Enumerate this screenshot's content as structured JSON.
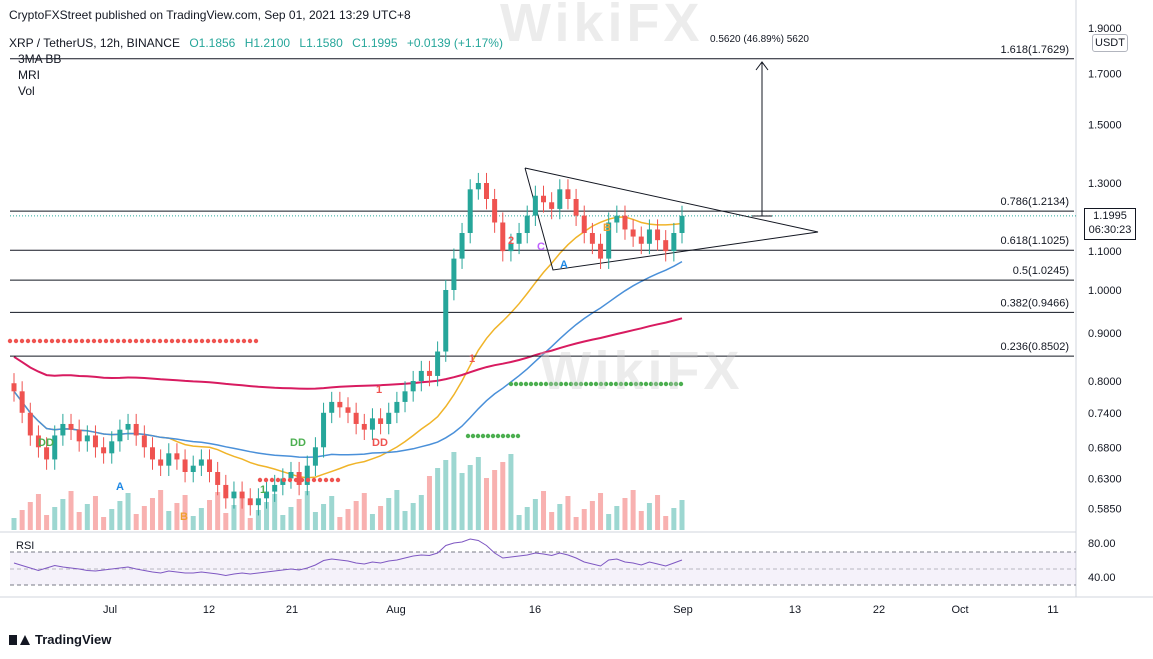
{
  "header": {
    "published": "CryptoFXStreet published on TradingView.com, Sep 01, 2021 13:29 UTC+8"
  },
  "symbol": {
    "name": "XRP / TetherUS, 12h, BINANCE",
    "open": "O1.1856",
    "high": "H1.2100",
    "low": "L1.1580",
    "close": "C1.1995",
    "change": "+0.0139 (+1.17%)"
  },
  "indicators": [
    "3MA BB",
    "MRI",
    "Vol"
  ],
  "currency": "USDT",
  "last_price": {
    "value": "1.1995",
    "countdown": "06:30:23"
  },
  "measure_label": "0.5620 (46.89%) 5620",
  "rsi_label": "RSI",
  "footer": {
    "brand": "TradingView"
  },
  "watermark": "WikiFX",
  "chart_data": {
    "type": "line",
    "title": "XRP / TetherUS, 12h, BINANCE",
    "y_ticks": [
      "1.9000",
      "1.7000",
      "1.5000",
      "1.3000",
      "1.1000",
      "1.0000",
      "0.9000",
      "0.8000",
      "0.7400",
      "0.6800",
      "0.6300",
      "0.5850"
    ],
    "y_tick_values": [
      1.9,
      1.7,
      1.5,
      1.3,
      1.1,
      1.0,
      0.9,
      0.8,
      0.74,
      0.68,
      0.63,
      0.585
    ],
    "x_ticks": [
      "Jul",
      "12",
      "21",
      "Aug",
      "16",
      "Sep",
      "13",
      "22",
      "Oct",
      "11"
    ],
    "rsi_ticks": [
      "80.00",
      "40.00"
    ],
    "fib_levels": [
      {
        "label": "1.618(1.7629)",
        "value": 1.7629
      },
      {
        "label": "0.786(1.2134)",
        "value": 1.2134
      },
      {
        "label": "0.618(1.1025)",
        "value": 1.1025
      },
      {
        "label": "0.5(1.0245)",
        "value": 1.0245
      },
      {
        "label": "0.382(0.9466)",
        "value": 0.9466
      },
      {
        "label": "0.236(0.8502)",
        "value": 0.8502
      }
    ],
    "close_series": [
      0.78,
      0.74,
      0.7,
      0.68,
      0.66,
      0.7,
      0.72,
      0.71,
      0.69,
      0.7,
      0.68,
      0.67,
      0.69,
      0.71,
      0.72,
      0.7,
      0.68,
      0.66,
      0.65,
      0.67,
      0.66,
      0.64,
      0.65,
      0.66,
      0.64,
      0.62,
      0.6,
      0.61,
      0.6,
      0.59,
      0.6,
      0.61,
      0.62,
      0.63,
      0.64,
      0.62,
      0.65,
      0.68,
      0.74,
      0.76,
      0.75,
      0.74,
      0.72,
      0.71,
      0.73,
      0.72,
      0.74,
      0.76,
      0.78,
      0.8,
      0.82,
      0.81,
      0.86,
      1.0,
      1.08,
      1.15,
      1.28,
      1.3,
      1.25,
      1.18,
      1.1,
      1.12,
      1.15,
      1.2,
      1.26,
      1.24,
      1.22,
      1.28,
      1.25,
      1.2,
      1.15,
      1.12,
      1.08,
      1.18,
      1.2,
      1.16,
      1.14,
      1.12,
      1.16,
      1.13,
      1.1,
      1.15,
      1.1995
    ],
    "markers": [
      "DD",
      "A",
      "B",
      "1",
      "DD",
      "1",
      "DD",
      "1",
      "2",
      "C",
      "A",
      "B"
    ]
  }
}
